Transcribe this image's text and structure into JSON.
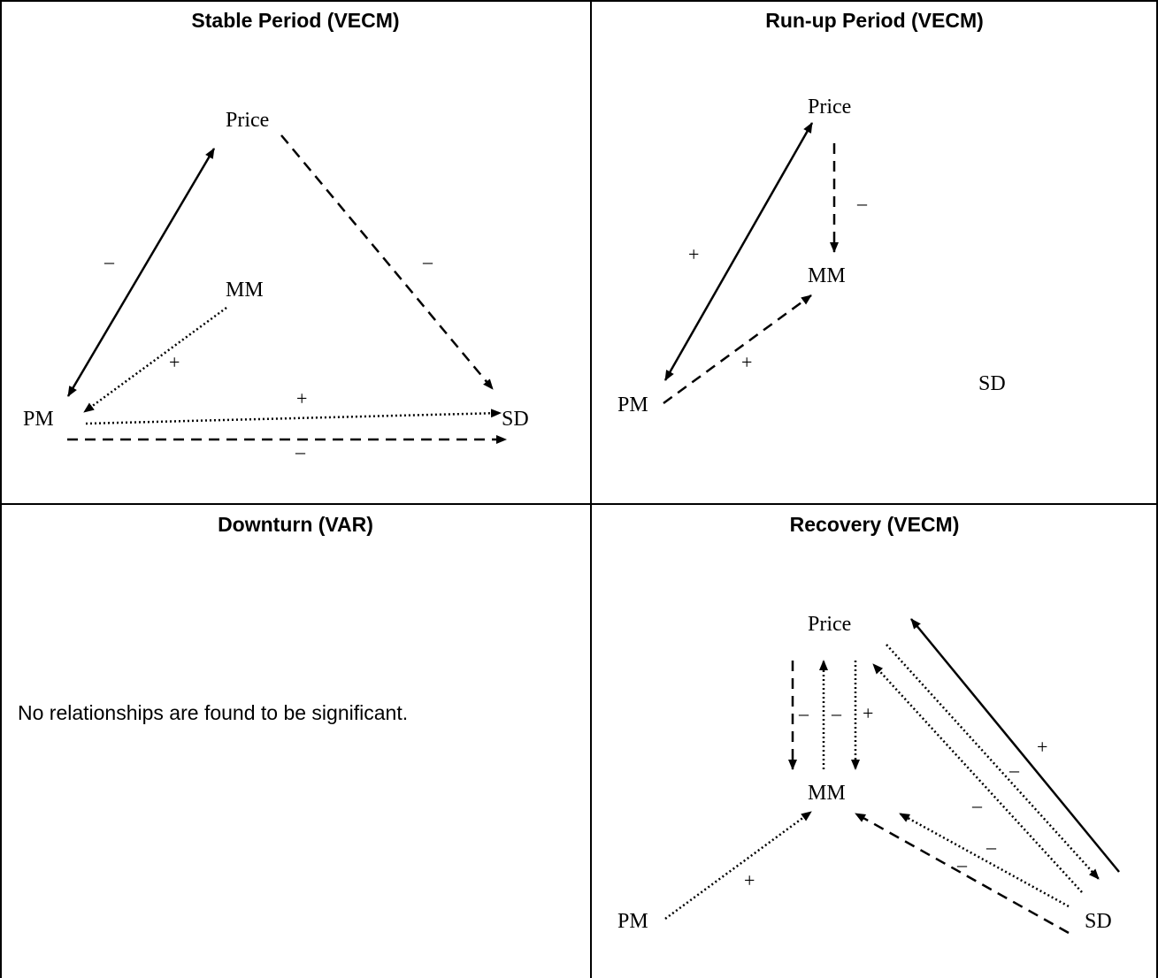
{
  "panels": {
    "stable": {
      "title": "Stable Period (VECM)",
      "nodes": {
        "price": "Price",
        "mm": "MM",
        "pm": "PM",
        "sd": "SD"
      },
      "signs": [
        "–",
        "–",
        "+",
        "+",
        "–"
      ]
    },
    "runup": {
      "title": "Run-up Period (VECM)",
      "nodes": {
        "price": "Price",
        "mm": "MM",
        "pm": "PM",
        "sd": "SD"
      },
      "signs": [
        "–",
        "+",
        "+"
      ]
    },
    "downturn": {
      "title": "Downturn (VAR)",
      "message": "No relationships are found to be significant."
    },
    "recovery": {
      "title": "Recovery (VECM)",
      "nodes": {
        "price": "Price",
        "mm": "MM",
        "pm": "PM",
        "sd": "SD"
      },
      "signs": [
        "–",
        "–",
        "+",
        "+",
        "–",
        "–",
        "–",
        "–",
        "+"
      ]
    }
  }
}
